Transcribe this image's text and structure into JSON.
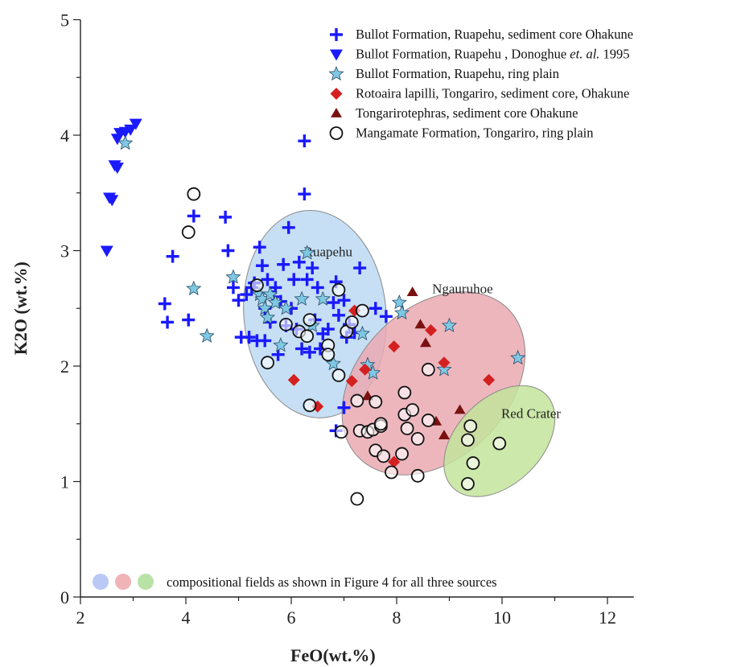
{
  "chart_data": {
    "type": "scatter",
    "xlabel": "FeO(wt.%)",
    "ylabel": "K2O (wt.%)",
    "xlim": [
      2,
      12.5
    ],
    "ylim": [
      0,
      5
    ],
    "x_ticks": [
      "2",
      "4",
      "6",
      "8",
      "10",
      "12"
    ],
    "y_ticks": [
      "0",
      "1",
      "2",
      "3",
      "4",
      "5"
    ],
    "grid": false,
    "legend_position": "top-right",
    "series": [
      {
        "name": "Bullot Formation, Ruapehu, sediment core Ohakune",
        "marker": "plus",
        "color": "#1a1aff",
        "points": [
          [
            3.6,
            2.54
          ],
          [
            3.65,
            2.38
          ],
          [
            3.75,
            2.95
          ],
          [
            4.05,
            2.4
          ],
          [
            4.15,
            3.3
          ],
          [
            4.75,
            3.29
          ],
          [
            4.8,
            3.0
          ],
          [
            4.9,
            2.68
          ],
          [
            5.0,
            2.57
          ],
          [
            5.05,
            2.25
          ],
          [
            5.15,
            2.62
          ],
          [
            5.2,
            2.25
          ],
          [
            5.25,
            2.68
          ],
          [
            5.3,
            2.72
          ],
          [
            5.35,
            2.22
          ],
          [
            5.4,
            3.03
          ],
          [
            5.45,
            2.87
          ],
          [
            5.5,
            2.5
          ],
          [
            5.5,
            2.22
          ],
          [
            5.55,
            2.75
          ],
          [
            5.6,
            2.38
          ],
          [
            5.65,
            2.6
          ],
          [
            5.7,
            2.68
          ],
          [
            5.75,
            2.1
          ],
          [
            5.8,
            2.56
          ],
          [
            5.85,
            2.88
          ],
          [
            5.9,
            2.35
          ],
          [
            5.95,
            3.2
          ],
          [
            6.0,
            2.5
          ],
          [
            6.05,
            2.75
          ],
          [
            6.1,
            2.32
          ],
          [
            6.15,
            2.9
          ],
          [
            6.2,
            2.15
          ],
          [
            6.25,
            3.95
          ],
          [
            6.25,
            3.49
          ],
          [
            6.3,
            2.75
          ],
          [
            6.35,
            2.12
          ],
          [
            6.4,
            2.85
          ],
          [
            6.45,
            2.4
          ],
          [
            6.5,
            2.68
          ],
          [
            6.55,
            2.15
          ],
          [
            6.6,
            2.28
          ],
          [
            6.7,
            2.32
          ],
          [
            6.8,
            2.55
          ],
          [
            6.85,
            2.73
          ],
          [
            6.9,
            2.44
          ],
          [
            7.0,
            2.57
          ],
          [
            7.05,
            2.25
          ],
          [
            7.1,
            2.36
          ],
          [
            7.2,
            2.29
          ],
          [
            7.3,
            2.85
          ],
          [
            7.6,
            2.5
          ],
          [
            7.8,
            2.43
          ],
          [
            6.85,
            1.44
          ],
          [
            7.0,
            1.64
          ]
        ]
      },
      {
        "name": "Bullot Formation, Ruapehu , Donoghue et. al. 1995",
        "marker": "triangle-down",
        "color": "#1a1aff",
        "points": [
          [
            2.5,
            3.0
          ],
          [
            2.55,
            3.46
          ],
          [
            2.6,
            3.44
          ],
          [
            2.65,
            3.74
          ],
          [
            2.7,
            3.72
          ],
          [
            2.7,
            3.97
          ],
          [
            2.75,
            4.02
          ],
          [
            2.85,
            4.03
          ],
          [
            2.95,
            4.05
          ],
          [
            3.05,
            4.1
          ]
        ]
      },
      {
        "name": "Bullot Formation, Ruapehu, ring plain",
        "marker": "star",
        "color": "#7ec8e3",
        "points": [
          [
            2.85,
            3.93
          ],
          [
            4.15,
            2.67
          ],
          [
            4.4,
            2.26
          ],
          [
            4.9,
            2.77
          ],
          [
            5.4,
            2.62
          ],
          [
            5.45,
            2.58
          ],
          [
            5.5,
            2.5
          ],
          [
            5.55,
            2.42
          ],
          [
            5.6,
            2.62
          ],
          [
            5.7,
            2.55
          ],
          [
            5.8,
            2.18
          ],
          [
            5.9,
            2.5
          ],
          [
            6.2,
            2.58
          ],
          [
            6.3,
            2.98
          ],
          [
            6.4,
            2.35
          ],
          [
            6.6,
            2.58
          ],
          [
            6.8,
            2.02
          ],
          [
            7.35,
            2.28
          ],
          [
            7.45,
            2.01
          ],
          [
            7.55,
            1.94
          ],
          [
            8.05,
            2.55
          ],
          [
            8.1,
            2.46
          ],
          [
            8.9,
            1.97
          ],
          [
            9.0,
            2.35
          ],
          [
            10.3,
            2.07
          ]
        ]
      },
      {
        "name": "Rotoaira lapilli, Tongariro, sediment core, Ohakune",
        "marker": "diamond",
        "color": "#d42020",
        "points": [
          [
            6.05,
            1.88
          ],
          [
            6.5,
            1.65
          ],
          [
            7.15,
            1.87
          ],
          [
            7.2,
            2.48
          ],
          [
            7.4,
            1.97
          ],
          [
            7.95,
            2.17
          ],
          [
            7.95,
            1.17
          ],
          [
            8.65,
            2.31
          ],
          [
            8.9,
            2.03
          ],
          [
            9.75,
            1.88
          ]
        ]
      },
      {
        "name": "Tongarirotephras, sediment core Ohakune",
        "marker": "triangle-up",
        "color": "#7a1010",
        "points": [
          [
            7.45,
            1.74
          ],
          [
            8.3,
            2.64
          ],
          [
            8.45,
            2.36
          ],
          [
            8.55,
            2.2
          ],
          [
            8.75,
            1.52
          ],
          [
            8.9,
            1.4
          ],
          [
            9.2,
            1.62
          ]
        ]
      },
      {
        "name": "Mangamate Formation, Tongariro, ring plain",
        "marker": "circle",
        "color": "#111111",
        "points": [
          [
            4.05,
            3.16
          ],
          [
            4.15,
            3.49
          ],
          [
            5.35,
            2.7
          ],
          [
            5.55,
            2.03
          ],
          [
            5.9,
            2.36
          ],
          [
            6.15,
            2.3
          ],
          [
            6.3,
            2.26
          ],
          [
            6.35,
            2.4
          ],
          [
            6.35,
            1.66
          ],
          [
            6.7,
            2.18
          ],
          [
            6.7,
            2.1
          ],
          [
            6.9,
            2.66
          ],
          [
            6.9,
            1.92
          ],
          [
            6.95,
            1.43
          ],
          [
            7.05,
            2.3
          ],
          [
            7.15,
            2.38
          ],
          [
            7.25,
            1.7
          ],
          [
            7.3,
            1.44
          ],
          [
            7.35,
            2.48
          ],
          [
            7.45,
            1.43
          ],
          [
            7.55,
            1.45
          ],
          [
            7.6,
            1.69
          ],
          [
            7.6,
            1.27
          ],
          [
            7.7,
            1.48
          ],
          [
            7.7,
            1.5
          ],
          [
            7.75,
            1.22
          ],
          [
            7.9,
            1.08
          ],
          [
            8.1,
            1.24
          ],
          [
            8.15,
            1.77
          ],
          [
            8.15,
            1.58
          ],
          [
            8.2,
            1.46
          ],
          [
            8.3,
            1.62
          ],
          [
            8.4,
            1.37
          ],
          [
            8.4,
            1.05
          ],
          [
            8.6,
            1.97
          ],
          [
            8.6,
            1.53
          ],
          [
            9.4,
            1.48
          ],
          [
            9.35,
            1.36
          ],
          [
            9.35,
            0.98
          ],
          [
            9.45,
            1.16
          ],
          [
            9.95,
            1.33
          ],
          [
            7.25,
            0.85
          ]
        ]
      }
    ],
    "fields": [
      {
        "name": "Ruapehu",
        "color": "#bcd9f2",
        "center": [
          6.45,
          2.45
        ],
        "rx": 1.35,
        "ry": 0.9,
        "angle": 5,
        "label_pos": [
          6.7,
          2.95
        ]
      },
      {
        "name": "Ngauruhoe",
        "color": "#eaa9b2",
        "center": [
          8.7,
          1.85
        ],
        "rx": 2.0,
        "ry": 0.65,
        "angle": 45,
        "label_pos": [
          9.25,
          2.63
        ]
      },
      {
        "name": "Red Crater",
        "color": "#c3e49b",
        "center": [
          9.95,
          1.35
        ],
        "rx": 1.25,
        "ry": 0.37,
        "angle": 45,
        "label_pos": [
          10.55,
          1.55
        ]
      }
    ],
    "legend": [
      {
        "label": "Bullot Formation, Ruapehu, sediment core Ohakune",
        "marker": "plus",
        "color": "#1a1aff"
      },
      {
        "label": "Bullot Formation, Ruapehu , Donoghue ",
        "label_italic": "et. al.",
        "label_end": " 1995",
        "marker": "triangle-down",
        "color": "#1a1aff"
      },
      {
        "label": "Bullot Formation, Ruapehu, ring plain",
        "marker": "star",
        "color": "#7ec8e3"
      },
      {
        "label": "Rotoaira lapilli, Tongariro, sediment core, Ohakune",
        "marker": "diamond",
        "color": "#d42020"
      },
      {
        "label": "Tongarirotephras, sediment core Ohakune",
        "marker": "triangle-up",
        "color": "#7a1010"
      },
      {
        "label": "Mangamate Formation, Tongariro, ring plain",
        "marker": "circle",
        "color": "#111111"
      }
    ],
    "note": {
      "text": "compositional fields as shown in Figure 4 for all three sources",
      "swatches": [
        "#b9c8f5",
        "#f0b3b8",
        "#b9e2a7"
      ]
    }
  }
}
